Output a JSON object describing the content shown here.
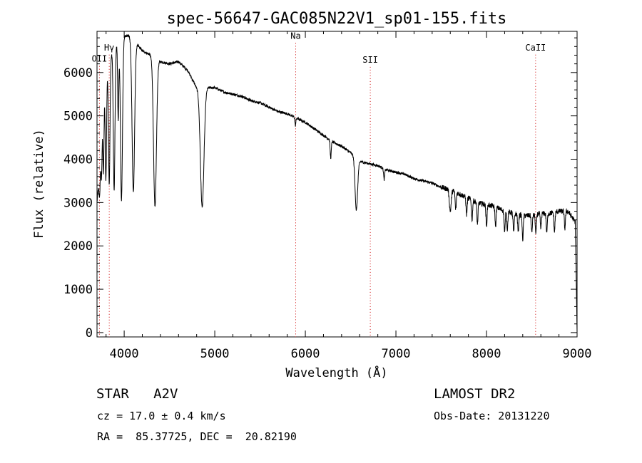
{
  "chart_data": {
    "type": "line",
    "title": "spec-56647-GAC085N22V1_sp01-155.fits",
    "xlabel": "Wavelength (Å)",
    "ylabel": "Flux (relative)",
    "xlim": [
      3700,
      9000
    ],
    "ylim": [
      -100,
      6950
    ],
    "xticks": [
      4000,
      5000,
      6000,
      7000,
      8000,
      9000
    ],
    "yticks": [
      0,
      1000,
      2000,
      3000,
      4000,
      5000,
      6000
    ],
    "grid": false,
    "line_color": "#000000",
    "marker_color": "#cc0000",
    "continuum": [
      [
        3700,
        3000
      ],
      [
        3720,
        3600
      ],
      [
        3750,
        4800
      ],
      [
        3780,
        5600
      ],
      [
        3820,
        6100
      ],
      [
        3870,
        6500
      ],
      [
        3920,
        6650
      ],
      [
        3970,
        6750
      ],
      [
        4010,
        6850
      ],
      [
        4050,
        6850
      ],
      [
        4100,
        6750
      ],
      [
        4200,
        6500
      ],
      [
        4300,
        6400
      ],
      [
        4400,
        6250
      ],
      [
        4500,
        6200
      ],
      [
        4600,
        6250
      ],
      [
        4700,
        6050
      ],
      [
        4800,
        5650
      ],
      [
        4900,
        5650
      ],
      [
        5000,
        5650
      ],
      [
        5100,
        5550
      ],
      [
        5200,
        5500
      ],
      [
        5300,
        5450
      ],
      [
        5400,
        5350
      ],
      [
        5500,
        5300
      ],
      [
        5600,
        5200
      ],
      [
        5700,
        5100
      ],
      [
        5800,
        5050
      ],
      [
        5900,
        4950
      ],
      [
        6000,
        4850
      ],
      [
        6100,
        4700
      ],
      [
        6200,
        4550
      ],
      [
        6300,
        4400
      ],
      [
        6400,
        4300
      ],
      [
        6500,
        4150
      ],
      [
        6600,
        3950
      ],
      [
        6700,
        3900
      ],
      [
        6800,
        3850
      ],
      [
        6900,
        3750
      ],
      [
        7000,
        3700
      ],
      [
        7100,
        3650
      ],
      [
        7200,
        3550
      ],
      [
        7300,
        3500
      ],
      [
        7400,
        3450
      ],
      [
        7500,
        3350
      ],
      [
        7600,
        3300
      ],
      [
        7700,
        3200
      ],
      [
        7800,
        3100
      ],
      [
        7900,
        3000
      ],
      [
        8000,
        2950
      ],
      [
        8100,
        2900
      ],
      [
        8200,
        2800
      ],
      [
        8300,
        2750
      ],
      [
        8400,
        2700
      ],
      [
        8500,
        2700
      ],
      [
        8600,
        2750
      ],
      [
        8700,
        2750
      ],
      [
        8800,
        2800
      ],
      [
        8900,
        2800
      ],
      [
        8980,
        2550
      ],
      [
        8990,
        1300
      ],
      [
        9000,
        0
      ]
    ],
    "absorption_lines": [
      {
        "wavelength": 3730,
        "depth": 800,
        "width": 8
      },
      {
        "wavelength": 3750,
        "depth": 1200,
        "width": 6
      },
      {
        "wavelength": 3771,
        "depth": 1700,
        "width": 6
      },
      {
        "wavelength": 3798,
        "depth": 2300,
        "width": 7
      },
      {
        "wavelength": 3835,
        "depth": 2800,
        "width": 8
      },
      {
        "wavelength": 3889,
        "depth": 3300,
        "width": 9
      },
      {
        "wavelength": 3934,
        "depth": 1800,
        "width": 6
      },
      {
        "wavelength": 3970,
        "depth": 3700,
        "width": 11
      },
      {
        "wavelength": 4101,
        "depth": 3500,
        "width": 14
      },
      {
        "wavelength": 4340,
        "depth": 3450,
        "width": 16
      },
      {
        "wavelength": 4861,
        "depth": 2750,
        "width": 20
      },
      {
        "wavelength": 5890,
        "depth": 180,
        "width": 5
      },
      {
        "wavelength": 6280,
        "depth": 400,
        "width": 6
      },
      {
        "wavelength": 6563,
        "depth": 1200,
        "width": 14
      },
      {
        "wavelength": 6870,
        "depth": 250,
        "width": 6
      },
      {
        "wavelength": 7600,
        "depth": 500,
        "width": 10
      },
      {
        "wavelength": 7660,
        "depth": 400,
        "width": 6
      },
      {
        "wavelength": 7780,
        "depth": 400,
        "width": 6
      },
      {
        "wavelength": 7840,
        "depth": 450,
        "width": 6
      },
      {
        "wavelength": 7900,
        "depth": 500,
        "width": 6
      },
      {
        "wavelength": 8000,
        "depth": 500,
        "width": 6
      },
      {
        "wavelength": 8100,
        "depth": 450,
        "width": 6
      },
      {
        "wavelength": 8200,
        "depth": 500,
        "width": 6
      },
      {
        "wavelength": 8230,
        "depth": 400,
        "width": 6
      },
      {
        "wavelength": 8300,
        "depth": 450,
        "width": 6
      },
      {
        "wavelength": 8350,
        "depth": 400,
        "width": 6
      },
      {
        "wavelength": 8400,
        "depth": 550,
        "width": 6
      },
      {
        "wavelength": 8500,
        "depth": 400,
        "width": 6
      },
      {
        "wavelength": 8545,
        "depth": 450,
        "width": 6
      },
      {
        "wavelength": 8600,
        "depth": 350,
        "width": 6
      },
      {
        "wavelength": 8665,
        "depth": 450,
        "width": 6
      },
      {
        "wavelength": 8750,
        "depth": 450,
        "width": 6
      },
      {
        "wavelength": 8865,
        "depth": 400,
        "width": 6
      }
    ],
    "line_markers": [
      {
        "label": "OII",
        "wavelength": 3727,
        "label_level": 6250
      },
      {
        "label": "Hγ",
        "wavelength": 3835,
        "label_level": 6510
      },
      {
        "label": "Na",
        "wavelength": 5893,
        "label_level": 6780
      },
      {
        "label": "SII",
        "wavelength": 6717,
        "label_level": 6230
      },
      {
        "label": "CaII",
        "wavelength": 8542,
        "label_level": 6510
      }
    ]
  },
  "info": {
    "object_class": "STAR   A2V",
    "redshift": "cz = 17.0 ± 0.4 km/s",
    "coordinates": "RA =  85.37725, DEC =  20.82190",
    "survey": "LAMOST DR2",
    "obs_date": "Obs-Date: 20131220"
  }
}
